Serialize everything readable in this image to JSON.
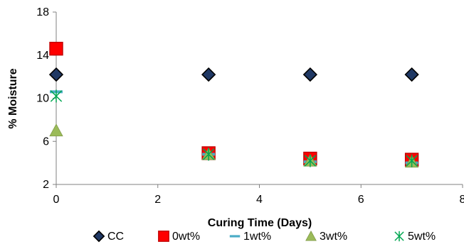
{
  "chart_data": {
    "type": "scatter",
    "xlabel": "Curing Time (Days)",
    "ylabel": "% Moisture",
    "xlim": [
      0,
      8
    ],
    "ylim": [
      2,
      18
    ],
    "xticks": [
      "0",
      "2",
      "4",
      "6",
      "8"
    ],
    "yticks": [
      "2",
      "6",
      "10",
      "14",
      "18"
    ],
    "grid": false,
    "legend_position": "bottom",
    "series": [
      {
        "name": "CC",
        "marker": "diamond",
        "color": "#000000",
        "fill": "#1f3864",
        "x": [
          0,
          3,
          5,
          7
        ],
        "y": [
          12.2,
          12.2,
          12.2,
          12.2
        ]
      },
      {
        "name": "0wt%",
        "marker": "square",
        "color": "#c00000",
        "fill": "#ff0000",
        "x": [
          0,
          3,
          5,
          7
        ],
        "y": [
          14.6,
          4.9,
          4.4,
          4.3
        ]
      },
      {
        "name": "1wt%",
        "marker": "dash",
        "color": "#4bacc6",
        "fill": "#4bacc6",
        "x": [
          0,
          3,
          5,
          7
        ],
        "y": [
          10.6,
          4.8,
          4.1,
          4.0
        ]
      },
      {
        "name": "3wt%",
        "marker": "triangle",
        "color": "#9bbb59",
        "fill": "#9bbb59",
        "x": [
          0,
          3,
          5,
          7
        ],
        "y": [
          7.0,
          4.8,
          4.2,
          4.1
        ]
      },
      {
        "name": "5wt%",
        "marker": "star",
        "color": "#00a651",
        "fill": "#00a651",
        "x": [
          0,
          3,
          5,
          7
        ],
        "y": [
          10.2,
          4.8,
          4.2,
          4.2
        ]
      }
    ]
  }
}
